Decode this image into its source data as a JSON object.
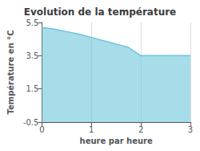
{
  "chart_data": {
    "type": "area",
    "title": "Evolution de la température",
    "xlabel": "heure par heure",
    "ylabel": "Température en °C",
    "x": [
      0,
      0.25,
      0.5,
      0.75,
      1.0,
      1.25,
      1.5,
      1.75,
      2.0,
      2.25,
      2.5,
      2.75,
      3.0
    ],
    "values": [
      5.2,
      5.1,
      4.95,
      4.8,
      4.6,
      4.4,
      4.2,
      4.0,
      3.5,
      3.5,
      3.5,
      3.5,
      3.5
    ],
    "color": "#6cc5db",
    "xlim": [
      0,
      3
    ],
    "ylim": [
      -0.5,
      5.5
    ],
    "xticks": [
      0,
      1,
      2,
      3
    ],
    "yticks": [
      -0.5,
      1.5,
      3.5,
      5.5
    ],
    "grid": "x"
  }
}
